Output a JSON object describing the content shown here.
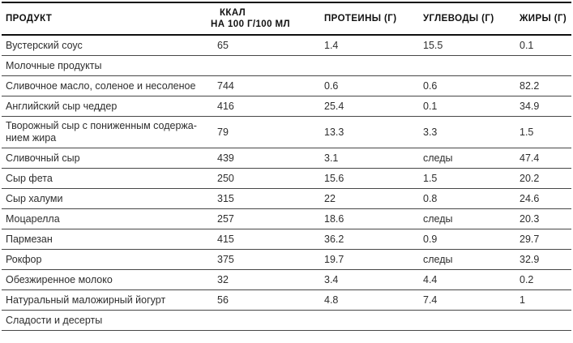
{
  "table": {
    "columns": [
      {
        "id": "product",
        "label": "ПРОДУКТ"
      },
      {
        "id": "kcal",
        "label": "ККАЛ",
        "label2": "НА 100 Г/100 МЛ"
      },
      {
        "id": "protein",
        "label": "ПРОТЕИНЫ (Г)"
      },
      {
        "id": "carbs",
        "label": "УГЛЕВОДЫ (Г)"
      },
      {
        "id": "fat",
        "label": "ЖИРЫ (Г)"
      }
    ],
    "rows": [
      {
        "type": "item",
        "product": "Вустерский соус",
        "kcal": "65",
        "protein": "1.4",
        "carbs": "15.5",
        "fat": "0.1"
      },
      {
        "type": "section",
        "product": "Молочные продукты",
        "kcal": "",
        "protein": "",
        "carbs": "",
        "fat": ""
      },
      {
        "type": "item",
        "product": "Сливочное масло, соленое и несоленое",
        "kcal": "744",
        "protein": "0.6",
        "carbs": "0.6",
        "fat": "82.2"
      },
      {
        "type": "item",
        "product": "Английский сыр чеддер",
        "kcal": "416",
        "protein": "25.4",
        "carbs": "0.1",
        "fat": "34.9"
      },
      {
        "type": "item",
        "product": "Творожный сыр с пониженным содержа­нием жира",
        "kcal": "79",
        "protein": "13.3",
        "carbs": "3.3",
        "fat": "1.5"
      },
      {
        "type": "item",
        "product": "Сливочный сыр",
        "kcal": "439",
        "protein": "3.1",
        "carbs": "следы",
        "fat": "47.4"
      },
      {
        "type": "item",
        "product": "Сыр фета",
        "kcal": "250",
        "protein": "15.6",
        "carbs": "1.5",
        "fat": "20.2"
      },
      {
        "type": "item",
        "product": "Сыр халуми",
        "kcal": "315",
        "protein": "22",
        "carbs": "0.8",
        "fat": "24.6"
      },
      {
        "type": "item",
        "product": "Моцарелла",
        "kcal": "257",
        "protein": "18.6",
        "carbs": "следы",
        "fat": "20.3"
      },
      {
        "type": "item",
        "product": "Пармезан",
        "kcal": "415",
        "protein": "36.2",
        "carbs": "0.9",
        "fat": "29.7"
      },
      {
        "type": "item",
        "product": "Рокфор",
        "kcal": "375",
        "protein": "19.7",
        "carbs": "следы",
        "fat": "32.9"
      },
      {
        "type": "item",
        "product": "Обезжиренное молоко",
        "kcal": "32",
        "protein": "3.4",
        "carbs": "4.4",
        "fat": "0.2"
      },
      {
        "type": "item",
        "product": "Натуральный маложирный йогурт",
        "kcal": "56",
        "protein": "4.8",
        "carbs": "7.4",
        "fat": "1"
      },
      {
        "type": "section",
        "product": "Сладости и десерты",
        "kcal": "",
        "protein": "",
        "carbs": "",
        "fat": ""
      }
    ]
  }
}
